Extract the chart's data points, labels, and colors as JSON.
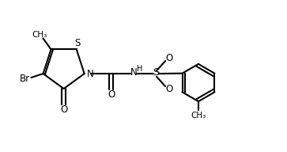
{
  "bg_color": "#ffffff",
  "line_color": "#000000",
  "line_width": 1.5,
  "font_size": 8.5,
  "figsize": [
    3.63,
    1.92
  ],
  "dpi": 100,
  "xlim": [
    0,
    9.5
  ],
  "ylim": [
    0,
    5.0
  ]
}
